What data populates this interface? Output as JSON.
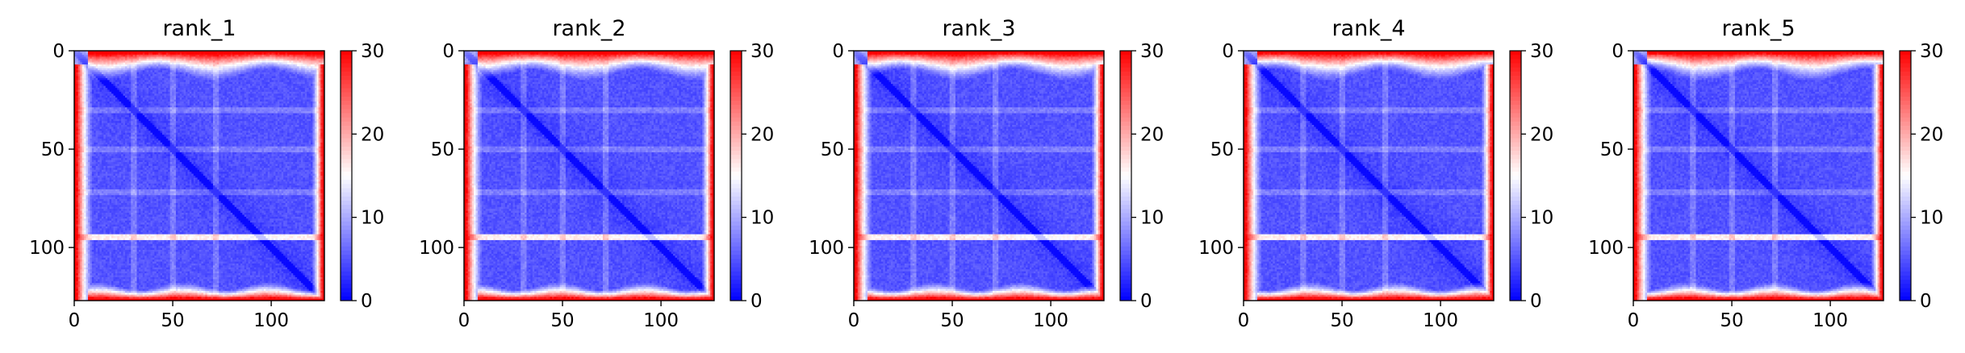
{
  "chart_data": [
    {
      "type": "heatmap",
      "title": "rank_1",
      "xlabel": "",
      "ylabel": "",
      "x_range": [
        0,
        127
      ],
      "y_range": [
        0,
        127
      ],
      "y_inverted": true,
      "x_ticks": [
        "0",
        "50",
        "100"
      ],
      "y_ticks": [
        "0",
        "50",
        "100"
      ],
      "x_tick_values": [
        0,
        50,
        100
      ],
      "y_tick_values": [
        0,
        50,
        100
      ],
      "colorbar": {
        "range": [
          0,
          30
        ],
        "ticks": [
          "0",
          "10",
          "20",
          "30"
        ],
        "tick_values": [
          0,
          10,
          20,
          30
        ],
        "colormap": "bwr"
      },
      "grid": false
    },
    {
      "type": "heatmap",
      "title": "rank_2",
      "xlabel": "",
      "ylabel": "",
      "x_range": [
        0,
        127
      ],
      "y_range": [
        0,
        127
      ],
      "y_inverted": true,
      "x_ticks": [
        "0",
        "50",
        "100"
      ],
      "y_ticks": [
        "0",
        "50",
        "100"
      ],
      "x_tick_values": [
        0,
        50,
        100
      ],
      "y_tick_values": [
        0,
        50,
        100
      ],
      "colorbar": {
        "range": [
          0,
          30
        ],
        "ticks": [
          "0",
          "10",
          "20",
          "30"
        ],
        "tick_values": [
          0,
          10,
          20,
          30
        ],
        "colormap": "bwr"
      },
      "grid": false
    },
    {
      "type": "heatmap",
      "title": "rank_3",
      "xlabel": "",
      "ylabel": "",
      "x_range": [
        0,
        127
      ],
      "y_range": [
        0,
        127
      ],
      "y_inverted": true,
      "x_ticks": [
        "0",
        "50",
        "100"
      ],
      "y_ticks": [
        "0",
        "50",
        "100"
      ],
      "x_tick_values": [
        0,
        50,
        100
      ],
      "y_tick_values": [
        0,
        50,
        100
      ],
      "colorbar": {
        "range": [
          0,
          30
        ],
        "ticks": [
          "0",
          "10",
          "20",
          "30"
        ],
        "tick_values": [
          0,
          10,
          20,
          30
        ],
        "colormap": "bwr"
      },
      "grid": false
    },
    {
      "type": "heatmap",
      "title": "rank_4",
      "xlabel": "",
      "ylabel": "",
      "x_range": [
        0,
        127
      ],
      "y_range": [
        0,
        127
      ],
      "y_inverted": true,
      "x_ticks": [
        "0",
        "50",
        "100"
      ],
      "y_ticks": [
        "0",
        "50",
        "100"
      ],
      "x_tick_values": [
        0,
        50,
        100
      ],
      "y_tick_values": [
        0,
        50,
        100
      ],
      "colorbar": {
        "range": [
          0,
          30
        ],
        "ticks": [
          "0",
          "10",
          "20",
          "30"
        ],
        "tick_values": [
          0,
          10,
          20,
          30
        ],
        "colormap": "bwr"
      },
      "grid": false
    },
    {
      "type": "heatmap",
      "title": "rank_5",
      "xlabel": "",
      "ylabel": "",
      "x_range": [
        0,
        127
      ],
      "y_range": [
        0,
        127
      ],
      "y_inverted": true,
      "x_ticks": [
        "0",
        "50",
        "100"
      ],
      "y_ticks": [
        "0",
        "50",
        "100"
      ],
      "x_tick_values": [
        0,
        50,
        100
      ],
      "y_tick_values": [
        0,
        50,
        100
      ],
      "colorbar": {
        "range": [
          0,
          30
        ],
        "ticks": [
          "0",
          "10",
          "20",
          "30"
        ],
        "tick_values": [
          0,
          10,
          20,
          30
        ],
        "colormap": "bwr"
      },
      "grid": false
    }
  ],
  "colors": {
    "low": "#0000ff",
    "mid": "#ffffff",
    "high": "#ff0000",
    "axis": "#000000"
  }
}
